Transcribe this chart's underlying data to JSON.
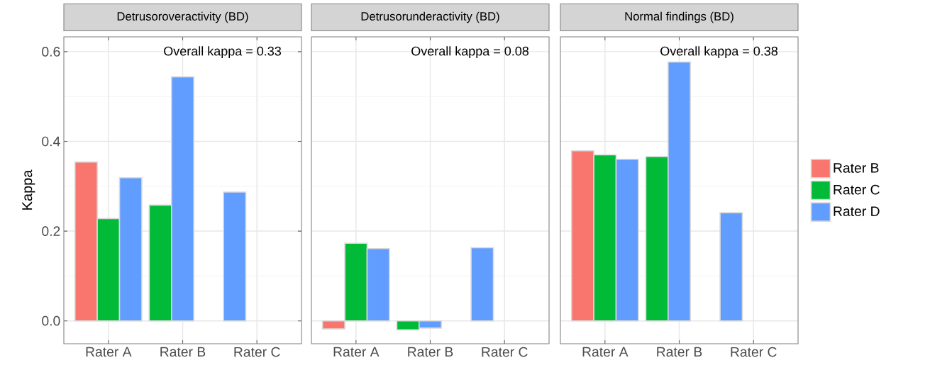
{
  "chart_data": [
    {
      "type": "bar",
      "title": "Detrusoroveractivity (BD)",
      "ylabel": "Kappa",
      "categories": [
        "Rater A",
        "Rater B",
        "Rater C"
      ],
      "series": [
        {
          "color": "#f8766d",
          "values": [
            0.354,
            null,
            null
          ]
        },
        {
          "color": "#00ba38",
          "values": [
            0.228,
            0.258,
            null
          ]
        },
        {
          "color": "#619cff",
          "values": [
            0.319,
            0.544,
            0.287
          ]
        }
      ],
      "ylim": [
        -0.051,
        0.633
      ],
      "yticks": [
        {
          "value": 0,
          "label": "0.0"
        },
        0.2,
        0.4,
        0.6
      ],
      "grid": true,
      "annotations": [
        "Overall kappa = 0.33"
      ]
    },
    {
      "type": "bar",
      "title": "Detrusorunderactivity (BD)",
      "categories": [
        "Rater A",
        "Rater B",
        "Rater C"
      ],
      "series": [
        {
          "color": "#f8766d",
          "values": [
            -0.018,
            null,
            null
          ]
        },
        {
          "color": "#00ba38",
          "values": [
            0.173,
            -0.02,
            null
          ]
        },
        {
          "color": "#619cff",
          "values": [
            0.161,
            -0.016,
            0.163
          ]
        }
      ],
      "ylim": [
        -0.051,
        0.633
      ],
      "yticks": [
        0,
        0.2,
        0.4,
        0.6
      ],
      "grid": true,
      "tick_labels": "x",
      "annotations": [
        "Overall kappa = 0.08"
      ]
    },
    {
      "type": "bar",
      "title": "Normal findings (BD)",
      "categories": [
        "Rater A",
        "Rater B",
        "Rater C"
      ],
      "series": [
        {
          "name": "Rater B",
          "color": "#f8766d",
          "values": [
            0.379,
            null,
            null
          ]
        },
        {
          "name": "Rater C",
          "color": "#00ba38",
          "values": [
            0.37,
            0.366,
            null
          ]
        },
        {
          "name": "Rater D",
          "color": "#619cff",
          "values": [
            0.36,
            0.577,
            0.241
          ]
        }
      ],
      "ylim": [
        -0.051,
        0.633
      ],
      "yticks": [
        0,
        0.2,
        0.4,
        0.6
      ],
      "grid": true,
      "tick_labels": "x",
      "legend": "right",
      "annotations": [
        "Overall kappa = 0.38"
      ]
    }
  ]
}
